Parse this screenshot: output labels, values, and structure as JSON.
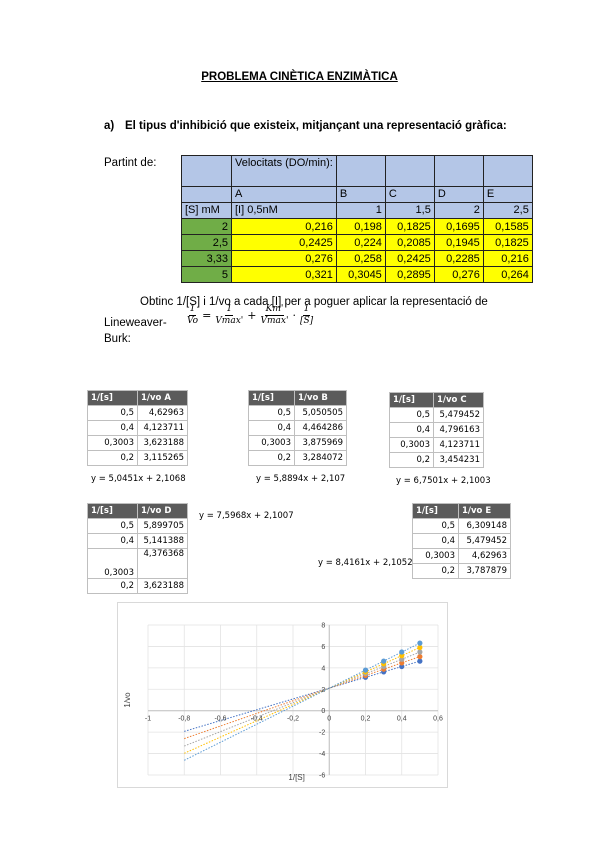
{
  "title": "PROBLEMA CINÈTICA ENZIMÀTICA",
  "question": {
    "letter": "a)",
    "text": "El tipus d'inhibició que existeix, mitjançant una representació gràfica:"
  },
  "partint": "Partint de:",
  "main_table": {
    "header_velocitats": "Velocitats (DO/min):",
    "letters": [
      "A",
      "B",
      "C",
      "D",
      "E"
    ],
    "row_label_s": "[S] mM",
    "inhibitor": [
      "[I] 0,5nM",
      "1",
      "1,5",
      "2",
      "2,5"
    ],
    "rows": [
      {
        "s": "2",
        "v": [
          "0,216",
          "0,198",
          "0,1825",
          "0,1695",
          "0,1585"
        ]
      },
      {
        "s": "2,5",
        "v": [
          "0,2425",
          "0,224",
          "0,2085",
          "0,1945",
          "0,1825"
        ]
      },
      {
        "s": "3,33",
        "v": [
          "0,276",
          "0,258",
          "0,2425",
          "0,2285",
          "0,216"
        ]
      },
      {
        "s": "5",
        "v": [
          "0,321",
          "0,3045",
          "0,2895",
          "0,276",
          "0,264"
        ]
      }
    ]
  },
  "paragraph": {
    "line1": "Obtinc 1/[S] i 1/vo a cada [I] per a poguer aplicar la representació de",
    "line2_prefix": "Lineweaver-Burk:"
  },
  "formula": {
    "lhs_num": "1",
    "lhs_den": "Vo",
    "t1_num": "1",
    "t1_den": "Vmax'",
    "t2_num": "Km'",
    "t2_den": "Vmax'",
    "t3_num": "1",
    "t3_den": "[S]",
    "eq": "=",
    "plus": "+",
    "dot": "·"
  },
  "small_tables": {
    "A": {
      "h1": "1/[s]",
      "h2": "1/vo  A",
      "rows": [
        [
          "0,5",
          "4,62963"
        ],
        [
          "0,4",
          "4,123711"
        ],
        [
          "0,3003",
          "3,623188"
        ],
        [
          "0,2",
          "3,115265"
        ]
      ],
      "equation": "y = 5,0451x + 2,1068"
    },
    "B": {
      "h1": "1/[s]",
      "h2": "1/vo  B",
      "rows": [
        [
          "0,5",
          "5,050505"
        ],
        [
          "0,4",
          "4,464286"
        ],
        [
          "0,3003",
          "3,875969"
        ],
        [
          "0,2",
          "3,284072"
        ]
      ],
      "equation": "y = 5,8894x + 2,107"
    },
    "C": {
      "h1": "1/[s]",
      "h2": "1/vo C",
      "rows": [
        [
          "0,5",
          "5,479452"
        ],
        [
          "0,4",
          "4,796163"
        ],
        [
          "0,3003",
          "4,123711"
        ],
        [
          "0,2",
          "3,454231"
        ]
      ],
      "equation": "y = 6,7501x + 2,1003"
    },
    "D": {
      "h1": "1/[s]",
      "h2": "1/vo  D",
      "rows": [
        [
          "0,5",
          "5,899705"
        ],
        [
          "0,4",
          "5,141388"
        ],
        [
          "0,3003",
          "4,376368"
        ],
        [
          "0,2",
          "3,623188"
        ]
      ],
      "equation": "y = 7,5968x + 2,1007"
    },
    "E": {
      "h1": "1/[s]",
      "h2": "1/vo E",
      "rows": [
        [
          "0,5",
          "6,309148"
        ],
        [
          "0,4",
          "5,479452"
        ],
        [
          "0,3003",
          "4,62963"
        ],
        [
          "0,2",
          "3,787879"
        ]
      ],
      "equation": "y = 8,4161x + 2,1052"
    }
  },
  "chart_data": {
    "type": "scatter",
    "xlabel": "1/[S]",
    "ylabel": "1/vo",
    "xlim": [
      -1,
      0.6
    ],
    "ylim": [
      -6,
      8
    ],
    "x_ticks": [
      "-1",
      "-0,8",
      "-0,6",
      "-0,4",
      "-0,2",
      "0",
      "0,2",
      "0,4",
      "0,6"
    ],
    "y_ticks": [
      "-6",
      "-4",
      "-2",
      "0",
      "2",
      "4",
      "6",
      "8"
    ],
    "grid": true,
    "x": [
      0.5,
      0.4,
      0.3003,
      0.2
    ],
    "series": [
      {
        "values": [
          4.62963,
          4.123711,
          3.623188,
          3.115265
        ],
        "slope": 5.0451,
        "intercept": 2.1068,
        "color": "#4472c4"
      },
      {
        "values": [
          5.050505,
          4.464286,
          3.875969,
          3.284072
        ],
        "slope": 5.8894,
        "intercept": 2.107,
        "color": "#ed7d31"
      },
      {
        "values": [
          5.479452,
          4.796163,
          4.123711,
          3.454231
        ],
        "slope": 6.7501,
        "intercept": 2.1003,
        "color": "#a5a5a5"
      },
      {
        "values": [
          5.899705,
          5.141388,
          4.376368,
          3.623188
        ],
        "slope": 7.5968,
        "intercept": 2.1007,
        "color": "#ffc000"
      },
      {
        "values": [
          6.309148,
          5.479452,
          4.62963,
          3.787879
        ],
        "slope": 8.4161,
        "intercept": 2.1052,
        "color": "#5b9bd5"
      }
    ]
  }
}
